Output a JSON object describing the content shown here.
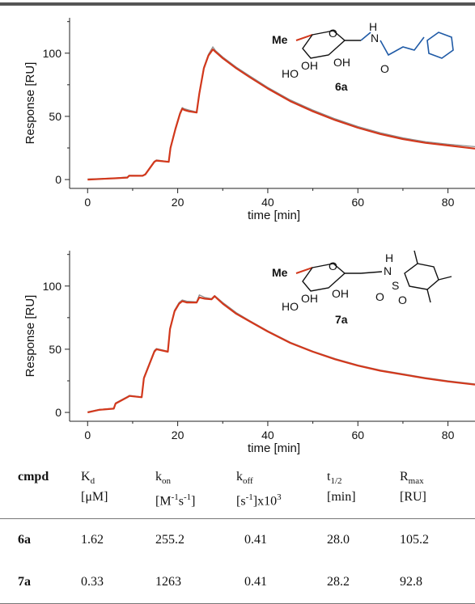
{
  "charts": [
    {
      "compound_label": "6a",
      "structure": {
        "methyl_label": "Me",
        "ring_labels": [
          "O",
          "OH",
          "HO",
          "OH"
        ],
        "linker_labels": [
          "H",
          "N",
          "O"
        ]
      }
    },
    {
      "compound_label": "7a",
      "structure": {
        "methyl_label": "Me",
        "ring_labels": [
          "O",
          "OH",
          "HO",
          "OH"
        ],
        "linker_labels": [
          "H",
          "N",
          "S",
          "O",
          "O"
        ]
      }
    }
  ],
  "chart_data": [
    {
      "type": "line",
      "title": "",
      "xlabel": "time [min]",
      "ylabel": "Response  [RU]",
      "xlim": [
        -4,
        86
      ],
      "ylim": [
        -7,
        128
      ],
      "x_ticks": [
        0,
        20,
        40,
        60,
        80
      ],
      "y_ticks": [
        0,
        50,
        100
      ],
      "series": [
        {
          "color": "#d2381c",
          "x": [
            0,
            3,
            6,
            8.8,
            9.2,
            12.2,
            12.8,
            14.8,
            15.3,
            18,
            18.4,
            19.5,
            20.5,
            21,
            21.5,
            22.5,
            24.2,
            24.8,
            25.8,
            26.8,
            27.8,
            28.4,
            30,
            33,
            36,
            40,
            45,
            50,
            55,
            60,
            65,
            70,
            75,
            80,
            86
          ],
          "y": [
            0,
            0.5,
            1,
            1.5,
            3,
            3,
            4,
            14,
            15,
            14,
            25,
            40,
            52,
            56,
            55,
            54,
            53,
            68,
            88,
            98,
            103,
            101,
            96,
            88,
            81,
            72,
            62,
            54,
            47,
            41,
            36,
            32,
            29,
            27,
            24.5
          ]
        },
        {
          "color": "#8c8c8c",
          "x": [
            0,
            3,
            6,
            8.8,
            9.2,
            12.2,
            12.8,
            14.8,
            15.3,
            18,
            18.4,
            19.5,
            20.5,
            21,
            21.5,
            22.5,
            24.2,
            24.8,
            25.8,
            26.8,
            27.8,
            28.4,
            30,
            33,
            36,
            40,
            45,
            50,
            55,
            60,
            65,
            70,
            75,
            80,
            86
          ],
          "y": [
            0.5,
            0.8,
            1.2,
            2,
            3.3,
            3.2,
            4.5,
            14.5,
            15.5,
            14.2,
            26,
            41,
            53,
            57,
            56,
            55,
            53.5,
            69,
            89,
            99,
            105,
            102,
            97,
            89,
            82,
            73,
            63,
            55,
            48,
            42,
            37,
            33,
            30,
            28,
            26
          ]
        }
      ]
    },
    {
      "type": "line",
      "title": "",
      "xlabel": "time [min]",
      "ylabel": "Response  [RU]",
      "xlim": [
        -4,
        86
      ],
      "ylim": [
        -7,
        128
      ],
      "x_ticks": [
        0,
        20,
        40,
        60,
        80
      ],
      "y_ticks": [
        0,
        50,
        100
      ],
      "series": [
        {
          "color": "#d2381c",
          "x": [
            0,
            2.5,
            5.8,
            6.2,
            8.8,
            9.3,
            12,
            12.5,
            14.8,
            15.3,
            17.8,
            18.3,
            19.3,
            20.3,
            21,
            22,
            24.2,
            24.8,
            26,
            27.5,
            28.2,
            30,
            33,
            36,
            40,
            45,
            50,
            55,
            60,
            65,
            70,
            75,
            80,
            86
          ],
          "y": [
            0,
            2,
            3,
            7,
            12,
            13,
            12,
            27,
            48,
            50,
            48,
            66,
            80,
            86,
            88,
            87,
            87,
            91,
            90,
            89.5,
            92,
            86,
            78,
            72,
            64,
            55,
            48,
            42,
            37,
            33,
            30,
            27,
            24.5,
            22
          ]
        },
        {
          "color": "#8c8c8c",
          "x": [
            0,
            2.5,
            5.8,
            6.2,
            8.8,
            9.3,
            12,
            12.5,
            14.8,
            15.3,
            17.8,
            18.3,
            19.3,
            20.3,
            21,
            22,
            24.2,
            24.8,
            26,
            27.5,
            28.2,
            30,
            33,
            36,
            40,
            45,
            50,
            55,
            60,
            65,
            70,
            75,
            80,
            86
          ],
          "y": [
            0.5,
            2.3,
            3.3,
            7.5,
            12.5,
            13.5,
            12.3,
            28,
            49,
            50.5,
            48.5,
            67,
            81,
            87,
            89,
            88,
            87.5,
            93,
            91,
            90,
            92.5,
            87,
            79,
            72.5,
            64.5,
            55.5,
            48.5,
            42.5,
            37.5,
            33.5,
            30.5,
            27.5,
            25,
            22.5
          ]
        }
      ]
    }
  ],
  "table": {
    "header": {
      "cmpd": "cmpd",
      "kd": {
        "sym": "K",
        "sub": "d",
        "unit": "[μM]"
      },
      "kon": {
        "sym": "k",
        "sub": "on",
        "unit_a": "[M",
        "sup1": "-1",
        "unit_b": "s",
        "sup2": "-1",
        "unit_c": "]"
      },
      "koff": {
        "sym": "k",
        "sub": "off",
        "unit_a": "[s",
        "sup1": "-1",
        "unit_b": "]x10",
        "sup2": "3"
      },
      "thalf": {
        "sym": "t",
        "sub": "1/2",
        "unit": "[min]"
      },
      "rmax": {
        "sym": "R",
        "sub": "max",
        "unit": "[RU]"
      }
    },
    "rows": [
      {
        "cmpd": "6a",
        "kd": "1.62",
        "kon": "255.2",
        "koff": "0.41",
        "thalf": "28.0",
        "rmax": "105.2"
      },
      {
        "cmpd": "7a",
        "kd": "0.33",
        "kon": "1263",
        "koff": "0.41",
        "thalf": "28.2",
        "rmax": "92.8"
      }
    ]
  }
}
